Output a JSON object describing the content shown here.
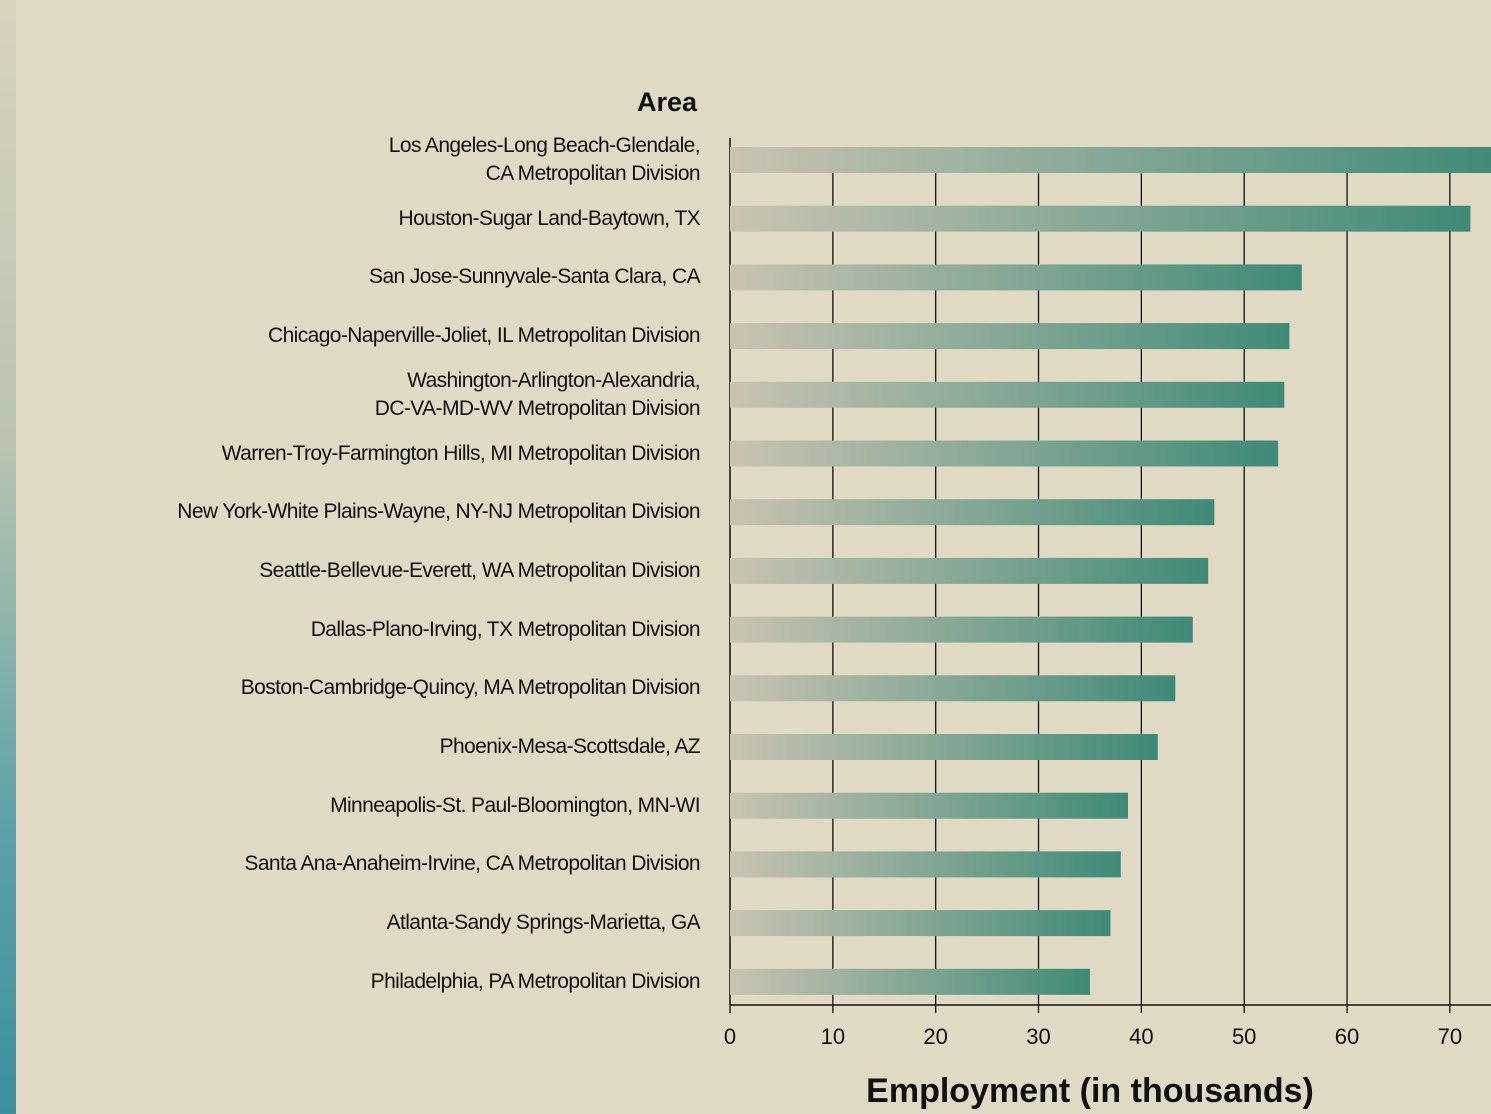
{
  "chart_data": {
    "type": "bar",
    "orientation": "horizontal",
    "y_axis_label": "Area",
    "x_axis_label": "Employment (in thousands)",
    "categories": [
      "Los Angeles-Long Beach-Glendale,\nCA Metropolitan Division",
      "Houston-Sugar Land-Baytown, TX",
      "San Jose-Sunnyvale-Santa Clara, CA",
      "Chicago-Naperville-Joliet, IL Metropolitan Division",
      "Washington-Arlington-Alexandria,\nDC-VA-MD-WV Metropolitan Division",
      "Warren-Troy-Farmington Hills, MI Metropolitan Division",
      "New York-White Plains-Wayne, NY-NJ Metropolitan Division",
      "Seattle-Bellevue-Everett, WA Metropolitan Division",
      "Dallas-Plano-Irving, TX Metropolitan Division",
      "Boston-Cambridge-Quincy, MA Metropolitan Division",
      "Phoenix-Mesa-Scottsdale, AZ",
      "Minneapolis-St. Paul-Bloomington, MN-WI",
      "Santa Ana-Anaheim-Irvine, CA Metropolitan Division",
      "Atlanta-Sandy Springs-Marietta, GA",
      "Philadelphia, PA Metropolitan Division"
    ],
    "values": [
      75,
      72.0,
      55.6,
      54.4,
      53.9,
      53.3,
      47.1,
      46.5,
      45.0,
      43.3,
      41.6,
      38.7,
      38.0,
      37.0,
      35.0
    ],
    "color": "#3f8a78",
    "xlim": [
      0,
      74
    ],
    "xticks": [
      0,
      10,
      20,
      30,
      40,
      50,
      60,
      70
    ],
    "grid": true
  }
}
